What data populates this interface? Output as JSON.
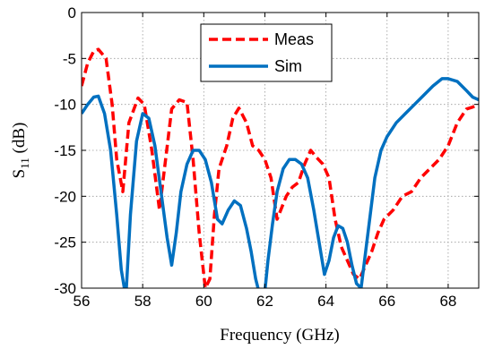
{
  "chart_data": {
    "type": "line",
    "xlabel": "Frequency (GHz)",
    "ylabel_main": "S",
    "ylabel_sub": "11",
    "ylabel_unit": " (dB)",
    "xlim": [
      56,
      69
    ],
    "ylim": [
      -30,
      0
    ],
    "xticks": [
      56,
      58,
      60,
      62,
      64,
      66,
      68
    ],
    "yticks": [
      0,
      -5,
      -10,
      -15,
      -20,
      -25,
      -30
    ],
    "grid": true,
    "legend_position": "top-center",
    "series": [
      {
        "name": "Meas",
        "color": "#ff0000",
        "style": "dashed",
        "x": [
          56.0,
          56.2,
          56.4,
          56.55,
          56.8,
          57.0,
          57.15,
          57.35,
          57.55,
          57.85,
          58.05,
          58.3,
          58.55,
          58.75,
          58.95,
          59.2,
          59.45,
          59.65,
          59.85,
          60.05,
          60.2,
          60.35,
          60.5,
          60.75,
          60.95,
          61.15,
          61.4,
          61.6,
          61.8,
          62.0,
          62.2,
          62.4,
          62.7,
          62.9,
          63.1,
          63.3,
          63.5,
          63.7,
          63.9,
          64.1,
          64.3,
          64.5,
          64.7,
          64.9,
          65.1,
          65.3,
          65.5,
          65.7,
          65.9,
          66.2,
          66.5,
          66.8,
          67.1,
          67.4,
          67.7,
          68.0,
          68.3,
          68.6,
          68.8,
          69.0
        ],
        "y": [
          -8,
          -5.5,
          -4.2,
          -4.0,
          -5,
          -10,
          -16,
          -19.5,
          -12,
          -9.3,
          -10,
          -15,
          -21.5,
          -16,
          -10.5,
          -9.5,
          -9.8,
          -16,
          -24,
          -30,
          -29,
          -22,
          -17,
          -14.5,
          -11.5,
          -10.4,
          -12,
          -14.5,
          -15,
          -16,
          -18,
          -22.5,
          -20,
          -19,
          -18.5,
          -16.5,
          -15,
          -15.8,
          -16.5,
          -18,
          -22.5,
          -25.5,
          -27,
          -28.5,
          -29,
          -27.5,
          -26,
          -24,
          -22.5,
          -21.5,
          -20,
          -19.5,
          -18,
          -17,
          -16,
          -14.5,
          -12,
          -10.5,
          -10.3,
          -10
        ]
      },
      {
        "name": "Sim",
        "color": "#0070c0",
        "style": "solid",
        "x": [
          56.0,
          56.2,
          56.4,
          56.55,
          56.75,
          56.95,
          57.15,
          57.3,
          57.45,
          57.6,
          57.8,
          58.0,
          58.2,
          58.4,
          58.6,
          58.8,
          58.95,
          59.1,
          59.25,
          59.45,
          59.65,
          59.85,
          60.05,
          60.25,
          60.45,
          60.6,
          60.8,
          61.0,
          61.2,
          61.4,
          61.55,
          61.7,
          61.85,
          61.98,
          62.1,
          62.25,
          62.4,
          62.6,
          62.8,
          63.0,
          63.2,
          63.4,
          63.6,
          63.8,
          63.95,
          64.1,
          64.25,
          64.4,
          64.55,
          64.7,
          64.85,
          65.0,
          65.15,
          65.3,
          65.45,
          65.6,
          65.8,
          66.0,
          66.3,
          66.6,
          66.9,
          67.2,
          67.5,
          67.8,
          68.0,
          68.3,
          68.6,
          68.8,
          69.0
        ],
        "y": [
          -11,
          -10,
          -9.2,
          -9.1,
          -11,
          -15,
          -22,
          -28,
          -31,
          -22,
          -14,
          -11,
          -11.5,
          -14.5,
          -19.5,
          -24.5,
          -27.5,
          -24,
          -19.5,
          -16.5,
          -15,
          -15,
          -16,
          -18.5,
          -22.5,
          -23,
          -21.5,
          -20.5,
          -21,
          -23.5,
          -26,
          -29,
          -31,
          -31,
          -27,
          -23,
          -19.5,
          -17,
          -16,
          -16,
          -16.5,
          -18,
          -21.5,
          -25.5,
          -28.5,
          -27,
          -24.5,
          -23.2,
          -23.5,
          -25,
          -27.5,
          -29.5,
          -30,
          -26,
          -22,
          -18,
          -15,
          -13.5,
          -12,
          -11,
          -10,
          -9,
          -8,
          -7.2,
          -7.2,
          -7.5,
          -8.5,
          -9.2,
          -9.5
        ]
      }
    ]
  }
}
